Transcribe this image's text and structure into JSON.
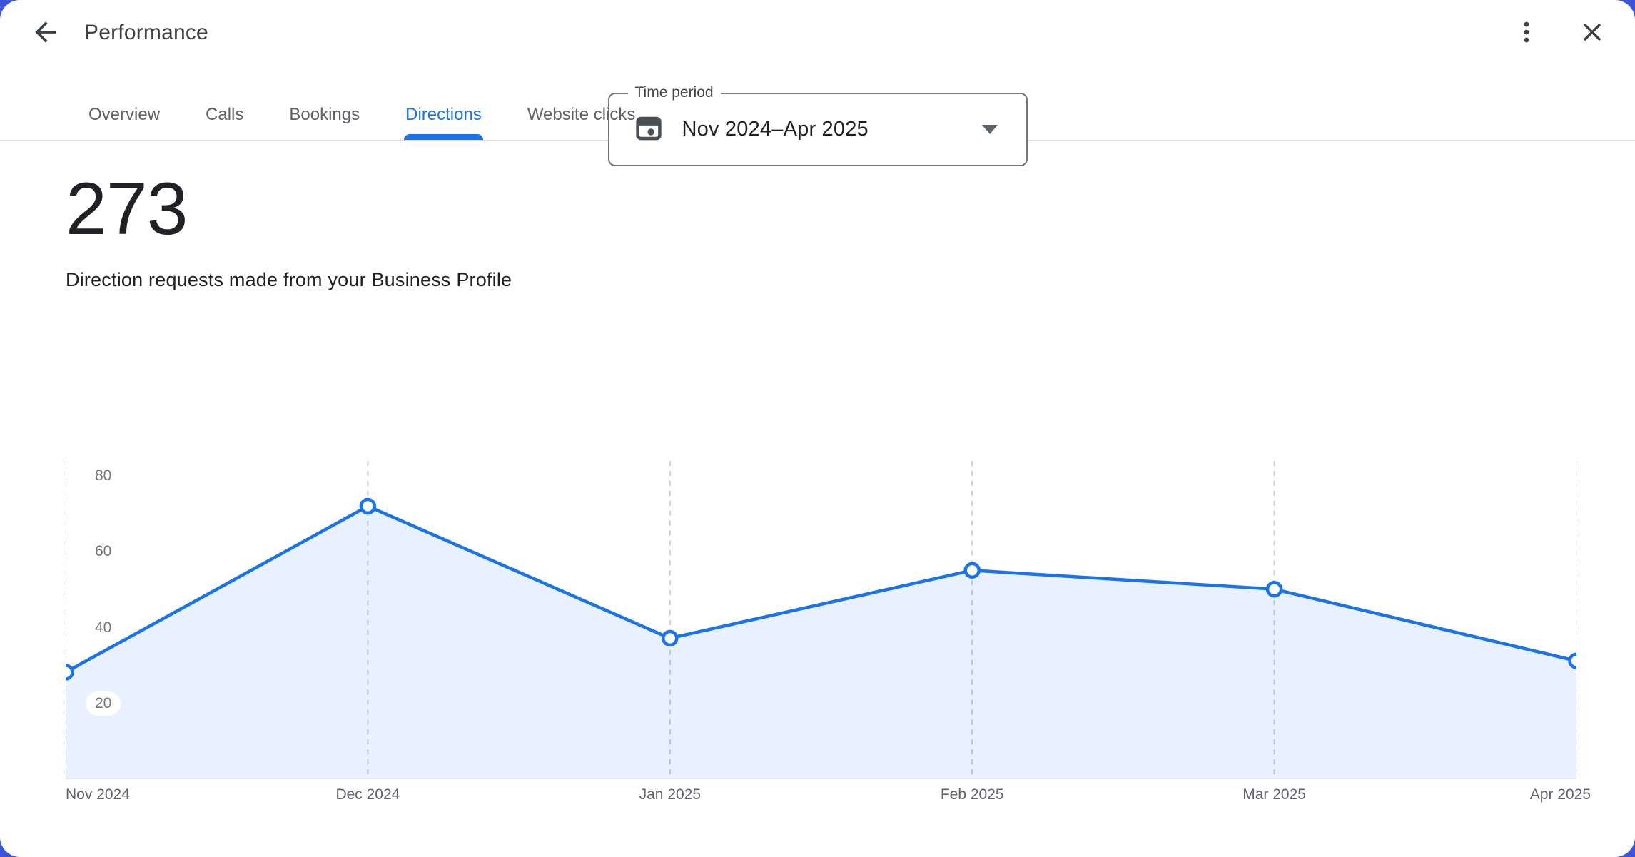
{
  "header": {
    "title": "Performance"
  },
  "time_period_field": {
    "label": "Time period",
    "value": "Nov 2024–Apr 2025"
  },
  "tabs": {
    "items": [
      {
        "label": "Overview",
        "active": false
      },
      {
        "label": "Calls",
        "active": false
      },
      {
        "label": "Bookings",
        "active": false
      },
      {
        "label": "Directions",
        "active": true
      },
      {
        "label": "Website clicks",
        "active": false
      }
    ]
  },
  "metric": {
    "value": "273",
    "description": "Direction requests made from your Business Profile"
  },
  "chart_data": {
    "type": "area",
    "title": "Direction requests made from your Business Profile",
    "categories": [
      "Nov 2024",
      "Dec 2024",
      "Jan 2025",
      "Feb 2025",
      "Mar 2025",
      "Apr 2025"
    ],
    "values": [
      28,
      72,
      37,
      55,
      50,
      31
    ],
    "total": 273,
    "y_ticks": [
      20,
      40,
      60,
      80
    ],
    "ylim": [
      0,
      84
    ],
    "xlabel": "",
    "ylabel": "",
    "grid": "vertical-dashed",
    "legend": "none"
  },
  "icons": {
    "back": "arrow-back-icon",
    "menu": "kebab-menu-icon",
    "close": "close-icon",
    "calendar": "calendar-icon",
    "dropdown": "dropdown-arrow-icon"
  },
  "colors": {
    "accent": "#1a73e8",
    "line": "#1a73e8",
    "area_fill": "rgba(26,115,232,0.10)",
    "point_fill": "#ffffff",
    "grid_line": "#c9ccd0",
    "background": "#3d53d9",
    "text_primary": "#202124",
    "text_secondary": "#5f6368"
  }
}
